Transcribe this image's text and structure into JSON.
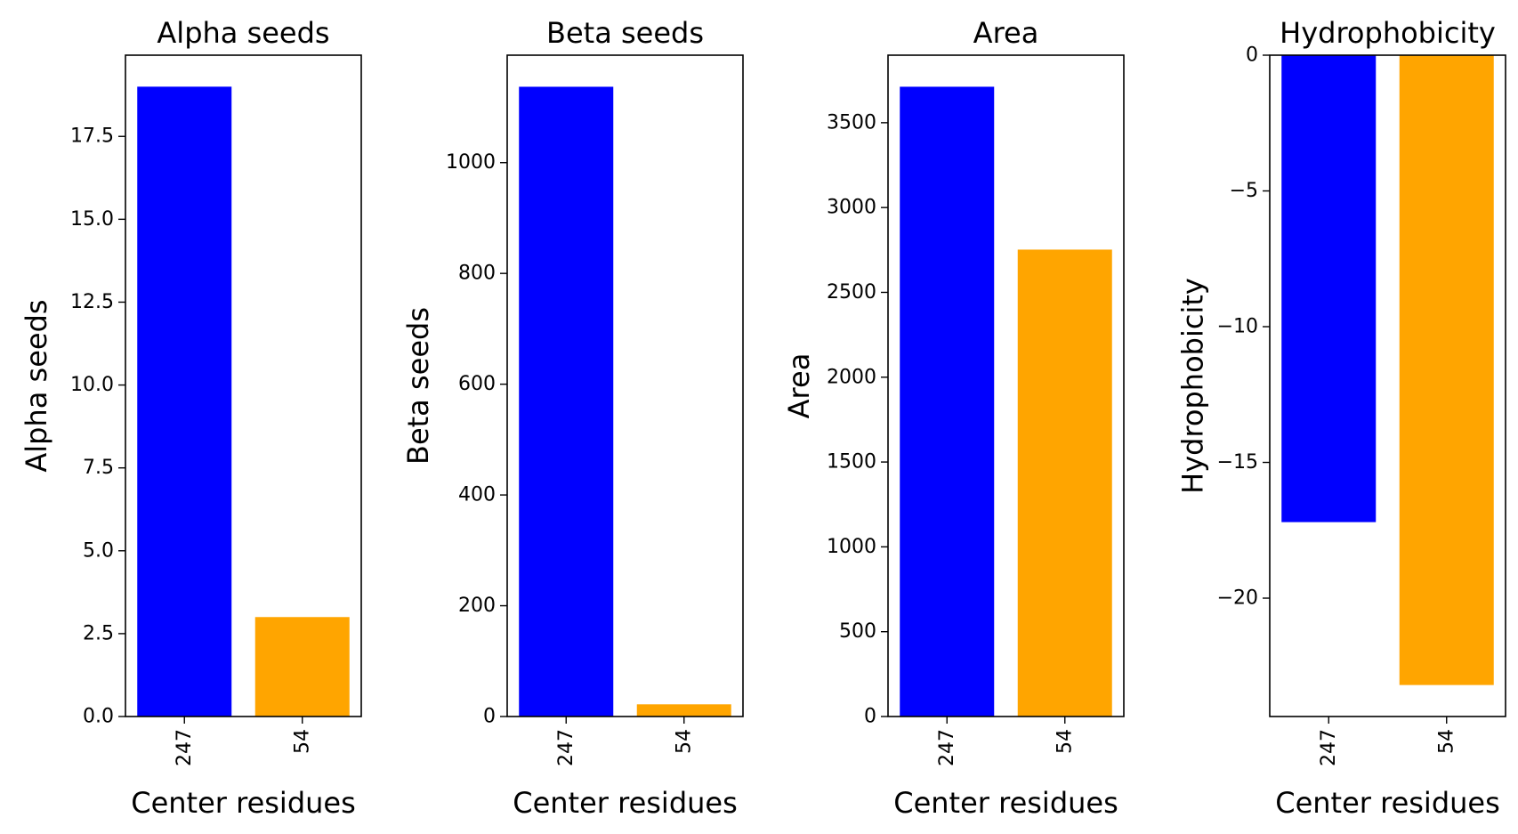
{
  "chart_data": [
    {
      "type": "bar",
      "title": "Alpha seeds",
      "xlabel": "Center residues",
      "ylabel": "Alpha seeds",
      "categories": [
        "247",
        "54"
      ],
      "values": [
        19,
        3
      ],
      "colors": [
        "#0000ff",
        "#ffa500"
      ],
      "ylim": [
        0,
        19.95
      ],
      "yticks": [
        0,
        2.5,
        5,
        7.5,
        10,
        12.5,
        15,
        17.5
      ],
      "ytick_labels": [
        "0.0",
        "2.5",
        "5.0",
        "7.5",
        "10.0",
        "12.5",
        "15.0",
        "17.5"
      ],
      "grid": false
    },
    {
      "type": "bar",
      "title": "Beta seeds",
      "xlabel": "Center residues",
      "ylabel": "Beta seeds",
      "categories": [
        "247",
        "54"
      ],
      "values": [
        1137,
        22
      ],
      "colors": [
        "#0000ff",
        "#ffa500"
      ],
      "ylim": [
        0,
        1194
      ],
      "yticks": [
        0,
        200,
        400,
        600,
        800,
        1000
      ],
      "ytick_labels": [
        "0",
        "200",
        "400",
        "600",
        "800",
        "1000"
      ],
      "grid": false
    },
    {
      "type": "bar",
      "title": "Area",
      "xlabel": "Center residues",
      "ylabel": "Area",
      "categories": [
        "247",
        "54"
      ],
      "values": [
        3712,
        2752
      ],
      "colors": [
        "#0000ff",
        "#ffa500"
      ],
      "ylim": [
        0,
        3898
      ],
      "yticks": [
        0,
        500,
        1000,
        1500,
        2000,
        2500,
        3000,
        3500
      ],
      "ytick_labels": [
        "0",
        "500",
        "1000",
        "1500",
        "2000",
        "2500",
        "3000",
        "3500"
      ],
      "grid": false
    },
    {
      "type": "bar",
      "title": "Hydrophobicity",
      "xlabel": "Center residues",
      "ylabel": "Hydrophobicity",
      "categories": [
        "247",
        "54"
      ],
      "values": [
        -17.2,
        -23.2
      ],
      "colors": [
        "#0000ff",
        "#ffa500"
      ],
      "ylim": [
        -24.36,
        0
      ],
      "yticks": [
        0,
        -5,
        -10,
        -15,
        -20
      ],
      "ytick_labels": [
        "0",
        "−5",
        "−10",
        "−15",
        "−20"
      ],
      "grid": false
    }
  ]
}
